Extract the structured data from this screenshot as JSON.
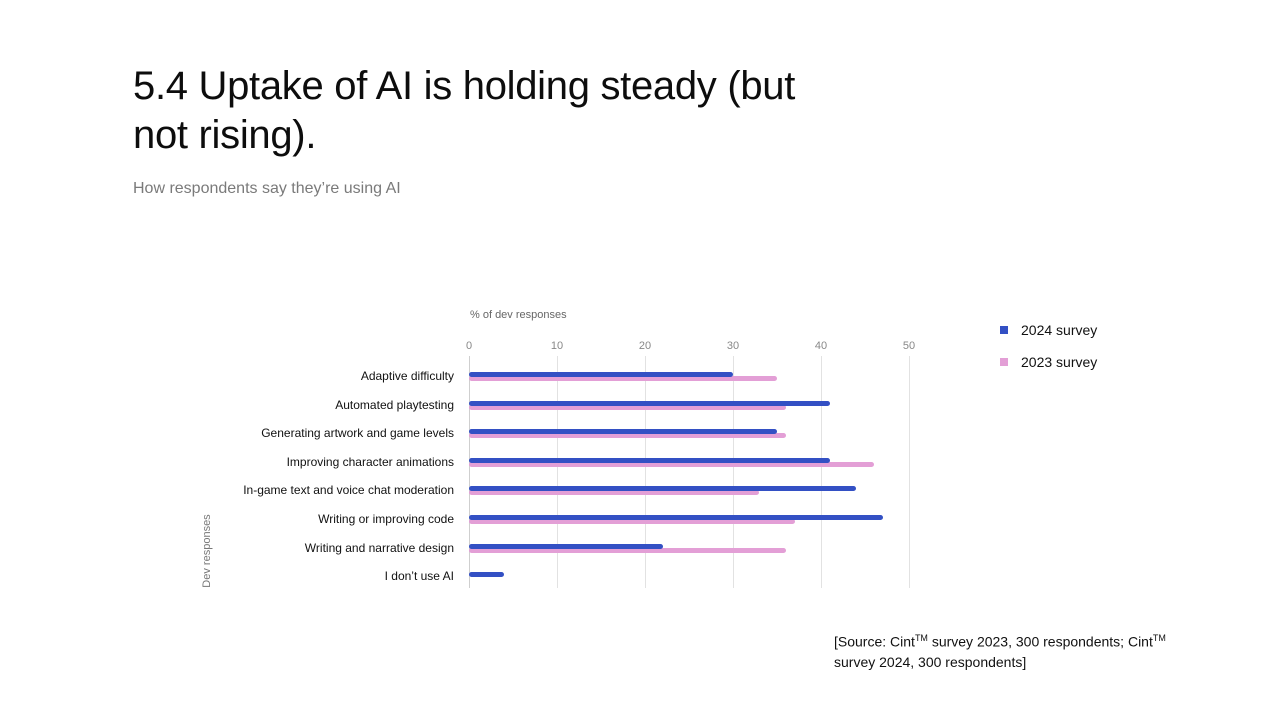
{
  "header": {
    "title": "5.4 Uptake of AI is holding steady (but not rising).",
    "subtitle": "How respondents say they’re using AI"
  },
  "chart": {
    "x_axis_title": "% of dev responses",
    "y_axis_title": "Dev responses",
    "ticks": [
      "0",
      "10",
      "20",
      "30",
      "40",
      "50"
    ],
    "legend": [
      {
        "label": "2024 survey",
        "color": "#3350c4"
      },
      {
        "label": "2023 survey",
        "color": "#e39fd6"
      }
    ],
    "rows": [
      {
        "label": "Adaptive difficulty"
      },
      {
        "label": "Automated playtesting"
      },
      {
        "label": "Generating artwork and game levels"
      },
      {
        "label": "Improving character animations"
      },
      {
        "label": "In-game text and voice chat moderation"
      },
      {
        "label": "Writing or improving code"
      },
      {
        "label": "Writing and narrative design"
      },
      {
        "label": "I don’t use AI"
      }
    ]
  },
  "source": {
    "part1": "[Source: Cint",
    "tm1": "TM",
    "part2": " survey 2023, 300 respondents; Cint",
    "tm2": "TM",
    "part3": " survey 2024, 300 respondents]"
  },
  "chart_data": {
    "type": "bar",
    "orientation": "horizontal",
    "title": "5.4 Uptake of AI is holding steady (but not rising).",
    "subtitle": "How respondents say they’re using AI",
    "xlabel": "% of dev responses",
    "ylabel": "Dev responses",
    "xlim": [
      0,
      50
    ],
    "xticks": [
      0,
      10,
      20,
      30,
      40,
      50
    ],
    "grid": true,
    "legend_position": "right",
    "categories": [
      "Adaptive difficulty",
      "Automated playtesting",
      "Generating artwork and game levels",
      "Improving character animations",
      "In-game text and voice chat moderation",
      "Writing or improving code",
      "Writing and narrative design",
      "I don’t use AI"
    ],
    "series": [
      {
        "name": "2024 survey",
        "color": "#3350c4",
        "values": [
          30,
          41,
          35,
          41,
          44,
          47,
          22,
          4
        ]
      },
      {
        "name": "2023 survey",
        "color": "#e39fd6",
        "values": [
          35,
          36,
          36,
          46,
          33,
          37,
          36,
          0
        ]
      }
    ],
    "annotations": [
      "[Source: CintTM survey 2023, 300 respondents; CintTM survey 2024, 300 respondents]"
    ]
  }
}
